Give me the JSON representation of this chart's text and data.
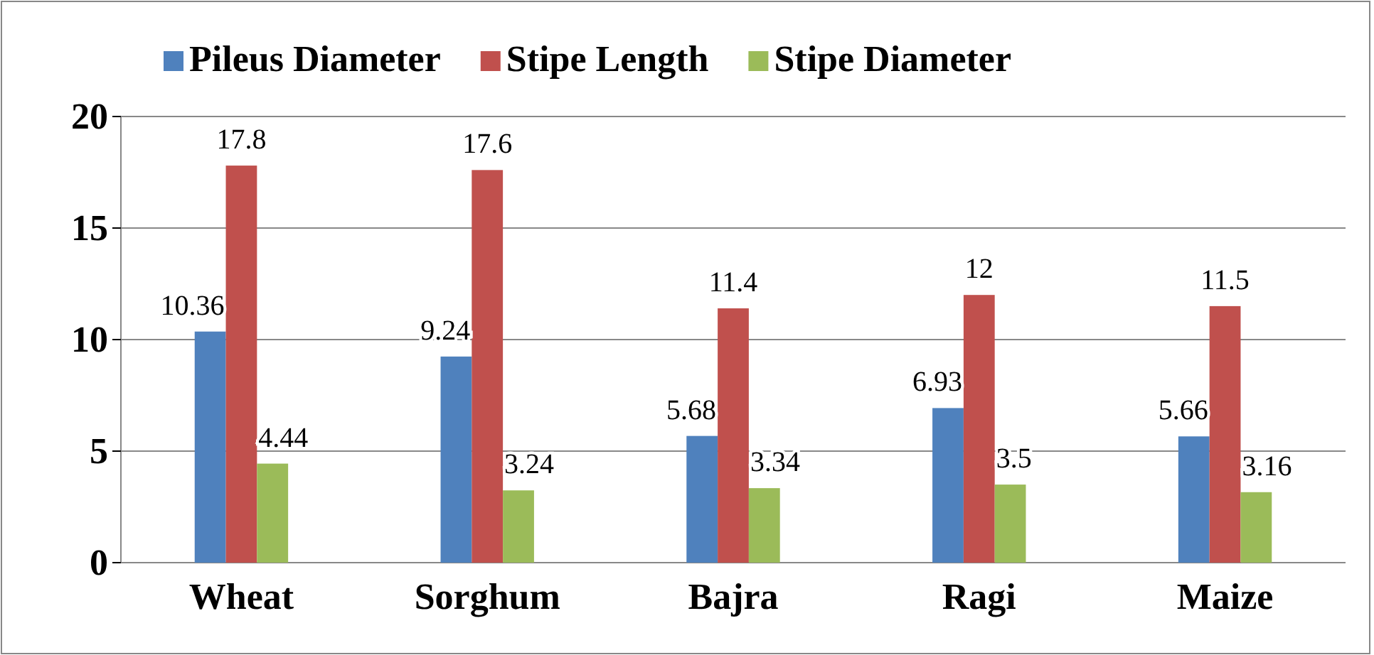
{
  "chart_data": {
    "type": "bar",
    "categories": [
      "Wheat",
      "Sorghum",
      "Bajra",
      "Ragi",
      "Maize"
    ],
    "series": [
      {
        "name": "Pileus Diameter",
        "color": "#4f81bd",
        "values": [
          10.36,
          9.24,
          5.68,
          6.93,
          5.66
        ]
      },
      {
        "name": "Stipe Length",
        "color": "#c0504d",
        "values": [
          17.8,
          17.6,
          11.4,
          12,
          11.5
        ]
      },
      {
        "name": "Stipe Diameter",
        "color": "#9bbb59",
        "values": [
          4.44,
          3.24,
          3.34,
          3.5,
          3.16
        ]
      }
    ],
    "ylim": [
      0,
      20
    ],
    "yticks": [
      0,
      5,
      10,
      15,
      20
    ],
    "grid": "y",
    "legend": "top",
    "data_labels": true
  }
}
